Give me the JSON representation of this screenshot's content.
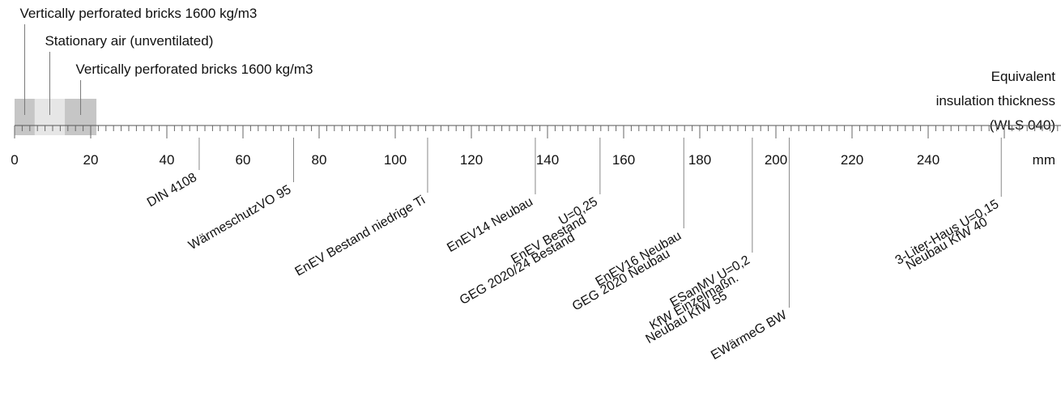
{
  "chart_data": {
    "type": "diagram",
    "layers": [
      {
        "name": "Vertically perforated bricks 1600 kg/m3",
        "from": 0,
        "to": 5.3,
        "color": "#c6c6c6"
      },
      {
        "name": "Stationary air (unventilated)",
        "from": 5.3,
        "to": 13.2,
        "color": "#e6e6e6"
      },
      {
        "name": "Vertically perforated bricks 1600 kg/m3",
        "from": 13.2,
        "to": 21.5,
        "color": "#c6c6c6"
      }
    ],
    "scale_title_lines": [
      "Equivalent",
      "insulation thickness",
      "(WLS 040)"
    ],
    "axis": {
      "min": 0,
      "max": 275,
      "major_step": 20,
      "minor_step": 2,
      "unit": "mm",
      "tick_labels": [
        "0",
        "20",
        "40",
        "60",
        "80",
        "100",
        "120",
        "140",
        "160",
        "180",
        "200",
        "220",
        "240"
      ]
    },
    "standards": [
      {
        "label": "DIN 4108",
        "value": 48.5
      },
      {
        "label": "WärmeschutzVO 95",
        "value": 73.3
      },
      {
        "label": "EnEV Bestand niedrige Ti",
        "value": 108.5
      },
      {
        "label": "EnEV14 Neubau",
        "value": 136.8
      },
      {
        "label": "U=0,25",
        "value": 153.8
      },
      {
        "label": "EnEV Bestand",
        "value": 153.8
      },
      {
        "label": "GEG 2020/24 Bestand",
        "value": 153.8
      },
      {
        "label": "EnEV16 Neubau",
        "value": 175.8
      },
      {
        "label": "GEG 2020 Neubau",
        "value": 175.8
      },
      {
        "label": "ESanMV U=0,2",
        "value": 193.8
      },
      {
        "label": "KfW Einzelmaßn.",
        "value": 193.8
      },
      {
        "label": "Neubau KfW 55",
        "value": 193.8
      },
      {
        "label": "EWärmeG BW",
        "value": 203.5
      },
      {
        "label": "3-Liter-Haus U=0,15",
        "value": 259.2
      },
      {
        "label": "Neubau KfW 40",
        "value": 259.2
      }
    ]
  }
}
